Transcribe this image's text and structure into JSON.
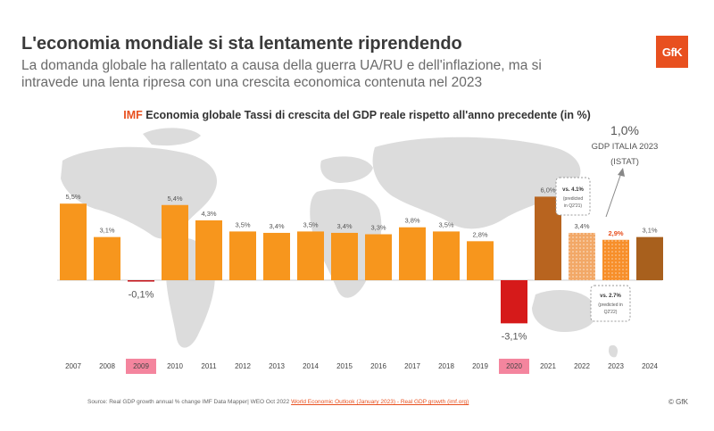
{
  "header": {
    "title": "L'economia mondiale si sta lentamente riprendendo",
    "subtitle": "La domanda globale ha rallentato a causa della guerra UA/RU e dell'inflazione, ma si intravede una lenta ripresa con una crescita economica contenuta nel 2023"
  },
  "logo": {
    "text": "GfK",
    "color": "#e8501f"
  },
  "chart_heading": {
    "source_tag": "IMF",
    "text": "Economia globale Tassi di crescita del GDP reale rispetto all'anno precedente (in %)"
  },
  "italia": {
    "value": "1,0%",
    "label_line1": "GDP ITALIA 2023",
    "label_line2": "(ISTAT)"
  },
  "callouts": [
    {
      "year": "2021",
      "line1": "vs. 4.1%",
      "line2": "(predicted",
      "line3": "in Q2'21)"
    },
    {
      "year": "2023",
      "line1": "vs. 2.7%",
      "line2": "(predicted in",
      "line3": "Q2'22)"
    }
  ],
  "chart_data": {
    "type": "bar",
    "title": "Economia globale Tassi di crescita del GDP reale rispetto all'anno precedente (in %)",
    "unit": "%",
    "categories": [
      "2007",
      "2008",
      "2009",
      "2010",
      "2011",
      "2012",
      "2013",
      "2014",
      "2015",
      "2016",
      "2017",
      "2018",
      "2019",
      "2020",
      "2021",
      "2022",
      "2023",
      "2024"
    ],
    "values": [
      5.5,
      3.1,
      -0.1,
      5.4,
      4.3,
      3.5,
      3.4,
      3.5,
      3.4,
      3.3,
      3.8,
      3.5,
      2.8,
      -3.1,
      6.0,
      3.4,
      2.9,
      3.1
    ],
    "value_labels": [
      "5,5%",
      "3,1%",
      "-0,1%",
      "5,4%",
      "4,3%",
      "3,5%",
      "3,4%",
      "3,5%",
      "3,4%",
      "3,3%",
      "3,8%",
      "3,5%",
      "2,8%",
      "-3,1%",
      "6,0%",
      "3,4%",
      "2,9%",
      "3,1%"
    ],
    "highlighted_categories": [
      "2009",
      "2020"
    ],
    "colors": {
      "bar_orange": "#f7961d",
      "bar_2009": "#c4161c",
      "bar_2020": "#d61a1a",
      "bar_2021": "#b8641f",
      "bar_2022": "#f2a867",
      "bar_2023": "#f78f2a",
      "bar_2024": "#a8601d",
      "highlight_bg": "#f4859e",
      "accent": "#e8501f"
    }
  },
  "footer": {
    "source": "Source: Real GDP growth annual % change IMF Data Mapper| WEO Oct 2022",
    "link": "World Economic Outlook (January 2023) - Real GDP growth (imf.org)",
    "copyright": "© GfK"
  }
}
